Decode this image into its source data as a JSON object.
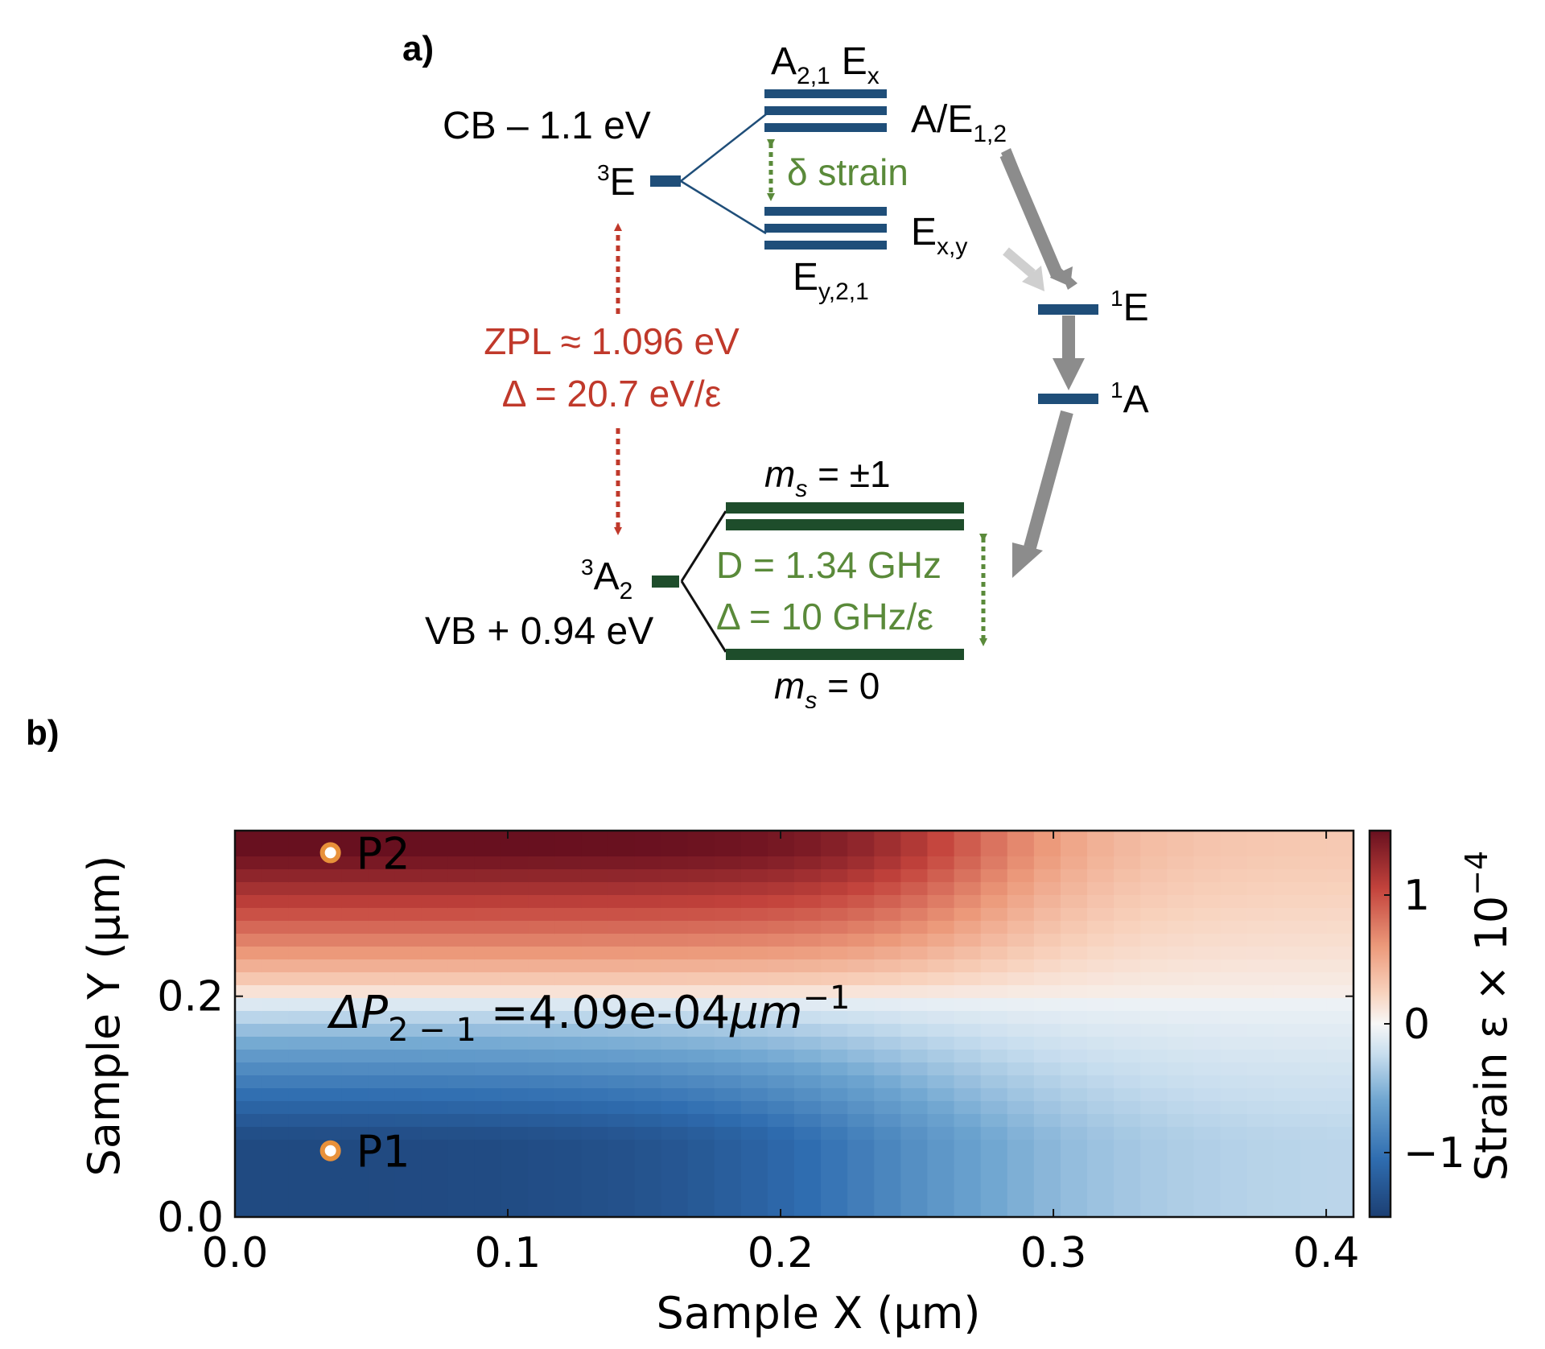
{
  "panel_a": {
    "label": "a)",
    "cb_label": "CB – 1.1 eV",
    "vb_label": "VB + 0.94 eV",
    "state_3E": {
      "sup": "3",
      "main": "E"
    },
    "state_3A2": {
      "sup": "3",
      "main": "A",
      "sub": "2"
    },
    "state_1E": {
      "sup": "1",
      "main": "E"
    },
    "state_1A": {
      "sup": "1",
      "main": "A"
    },
    "upper_top_label": {
      "a": "A",
      "a_sub": "2,1",
      "e": "E",
      "e_sub": "x"
    },
    "upper_right_top": {
      "main": "A/E",
      "sub": "1,2"
    },
    "upper_right_bottom": {
      "main": "E",
      "sub": "x,y"
    },
    "upper_bottom_label": {
      "main": "E",
      "sub": "y,2,1"
    },
    "delta_strain": "δ strain",
    "zpl_line1": "ZPL ≈ 1.096 eV",
    "zpl_line2": "Δ = 20.7 eV/ε",
    "ms_top": {
      "m": "m",
      "sub": "s",
      "rest": " = ±1"
    },
    "ms_bottom": {
      "m": "m",
      "sub": "s",
      "rest": " = 0"
    },
    "d_line1": "D = 1.34 GHz",
    "d_line2": "Δ = 10 GHz/ε",
    "colors": {
      "excited_level": "#1f4e79",
      "ground_level": "#1e4d2b",
      "red": "#c0392b",
      "green": "#5a8a3a",
      "gray_arrow": "#8c8c8c",
      "light_arrow": "#cfcfcf"
    }
  },
  "panel_b": {
    "label": "b)",
    "chart_data": {
      "type": "heatmap",
      "xlabel": "Sample X (μm)",
      "ylabel": "Sample Y (μm)",
      "xlim": [
        0.0,
        0.41
      ],
      "ylim": [
        0.0,
        0.35
      ],
      "xticks": [
        "0.0",
        "0.1",
        "0.2",
        "0.3",
        "0.4"
      ],
      "xtick_values": [
        0.0,
        0.1,
        0.2,
        0.3,
        0.4
      ],
      "yticks": [
        "0.0",
        "0.2"
      ],
      "ytick_values": [
        0.0,
        0.2
      ],
      "colorbar_label": "Strain ε × 10",
      "colorbar_exponent": "−4",
      "colorbar_range": [
        -1.5,
        1.5
      ],
      "colorbar_ticks": [
        "1",
        "0",
        "−1"
      ],
      "colorbar_tick_values": [
        1,
        0,
        -1
      ],
      "colormap": "RdBu_r",
      "annotation": {
        "prefix": "ΔP",
        "sub": "2 − 1",
        "value": " =4.09e-04",
        "unit": "μm",
        "exp": "−1"
      },
      "points": [
        {
          "name": "P2",
          "x": 0.035,
          "y": 0.33
        },
        {
          "name": "P1",
          "x": 0.035,
          "y": 0.06
        }
      ],
      "grid": {
        "nx": 42,
        "ny": 30
      },
      "point_color": "#e8913a"
    }
  }
}
